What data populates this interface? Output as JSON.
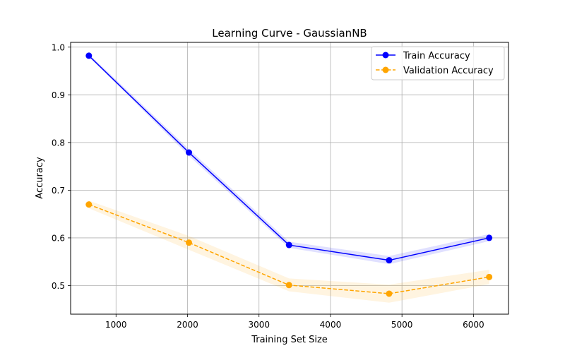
{
  "chart_data": {
    "type": "line",
    "title": "Learning Curve - GaussianNB",
    "xlabel": "Training Set Size",
    "ylabel": "Accuracy",
    "xlim": [
      365,
      6490
    ],
    "ylim": [
      0.44,
      1.01
    ],
    "xticks": [
      1000,
      2000,
      3000,
      4000,
      5000,
      6000
    ],
    "yticks": [
      0.5,
      0.6,
      0.7,
      0.8,
      0.9,
      1.0
    ],
    "xtick_labels": [
      "1000",
      "2000",
      "3000",
      "4000",
      "5000",
      "6000"
    ],
    "ytick_labels": [
      "0.5",
      "0.6",
      "0.7",
      "0.8",
      "0.9",
      "1.0"
    ],
    "grid": true,
    "legend_position": "top-right",
    "x": [
      620,
      2020,
      3420,
      4820,
      6220
    ],
    "series": [
      {
        "name": "Train Accuracy",
        "values": [
          0.982,
          0.779,
          0.585,
          0.553,
          0.6
        ],
        "band_lower": [
          0.98,
          0.772,
          0.579,
          0.545,
          0.593
        ],
        "band_upper": [
          0.986,
          0.786,
          0.592,
          0.562,
          0.608
        ],
        "color": "#0000ff",
        "band_color": "#0000ff",
        "linestyle": "solid",
        "marker": "circle"
      },
      {
        "name": "Validation Accuracy",
        "values": [
          0.67,
          0.59,
          0.501,
          0.483,
          0.518
        ],
        "band_lower": [
          0.662,
          0.575,
          0.488,
          0.464,
          0.503
        ],
        "band_upper": [
          0.678,
          0.604,
          0.515,
          0.502,
          0.533
        ],
        "color": "#ffa500",
        "band_color": "#ffa500",
        "linestyle": "dashed",
        "marker": "circle"
      }
    ]
  }
}
